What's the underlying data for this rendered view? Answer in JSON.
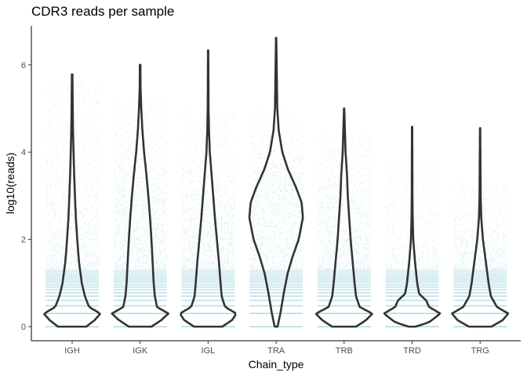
{
  "chart_data": {
    "type": "violin",
    "title": "CDR3 reads per sample",
    "xlabel": "Chain_type",
    "ylabel": "log10(reads)",
    "ylim": [
      -0.3,
      6.95
    ],
    "yticks": [
      "0",
      "2",
      "4",
      "6"
    ],
    "categories": [
      "IGH",
      "IGK",
      "IGL",
      "TRA",
      "TRB",
      "TRD",
      "TRG"
    ],
    "grid": false,
    "legend": "none",
    "colors": {
      "points": "#a6d8e0",
      "violin": "#333333",
      "axis": "#000000"
    },
    "violins": [
      {
        "name": "IGH",
        "max": 5.78,
        "point_max": 5.6,
        "profile": [
          [
            0,
            0.5
          ],
          [
            0.15,
            0.8
          ],
          [
            0.3,
            1.0
          ],
          [
            0.45,
            0.6
          ],
          [
            0.7,
            0.45
          ],
          [
            1.0,
            0.34
          ],
          [
            1.5,
            0.24
          ],
          [
            2.0,
            0.18
          ],
          [
            2.5,
            0.13
          ],
          [
            3.0,
            0.1
          ],
          [
            3.5,
            0.07
          ],
          [
            4.0,
            0.05
          ],
          [
            4.5,
            0.03
          ],
          [
            5.0,
            0.02
          ],
          [
            5.78,
            0.01
          ]
        ]
      },
      {
        "name": "IGK",
        "max": 6.0,
        "point_max": 5.3,
        "profile": [
          [
            0,
            0.4
          ],
          [
            0.15,
            0.75
          ],
          [
            0.3,
            1.0
          ],
          [
            0.45,
            0.6
          ],
          [
            0.7,
            0.52
          ],
          [
            1.0,
            0.48
          ],
          [
            1.5,
            0.44
          ],
          [
            2.0,
            0.4
          ],
          [
            2.5,
            0.35
          ],
          [
            3.0,
            0.29
          ],
          [
            3.5,
            0.22
          ],
          [
            4.0,
            0.14
          ],
          [
            4.5,
            0.08
          ],
          [
            5.0,
            0.04
          ],
          [
            5.5,
            0.015
          ],
          [
            6.0,
            0.01
          ]
        ]
      },
      {
        "name": "IGL",
        "max": 6.33,
        "point_max": 5.0,
        "profile": [
          [
            0,
            0.5
          ],
          [
            0.15,
            0.85
          ],
          [
            0.3,
            1.0
          ],
          [
            0.45,
            0.6
          ],
          [
            0.7,
            0.48
          ],
          [
            1.0,
            0.44
          ],
          [
            1.5,
            0.38
          ],
          [
            2.0,
            0.31
          ],
          [
            2.5,
            0.24
          ],
          [
            3.0,
            0.18
          ],
          [
            3.5,
            0.12
          ],
          [
            4.0,
            0.06
          ],
          [
            4.5,
            0.03
          ],
          [
            5.0,
            0.015
          ],
          [
            6.33,
            0.005
          ]
        ]
      },
      {
        "name": "TRA",
        "max": 6.62,
        "point_max": 5.0,
        "profile": [
          [
            0,
            0.05
          ],
          [
            0.3,
            0.15
          ],
          [
            0.8,
            0.28
          ],
          [
            1.2,
            0.4
          ],
          [
            1.6,
            0.58
          ],
          [
            2.0,
            0.8
          ],
          [
            2.5,
            0.95
          ],
          [
            2.85,
            0.9
          ],
          [
            3.2,
            0.7
          ],
          [
            3.6,
            0.42
          ],
          [
            4.0,
            0.22
          ],
          [
            4.5,
            0.09
          ],
          [
            5.0,
            0.04
          ],
          [
            6.62,
            0.005
          ]
        ]
      },
      {
        "name": "TRB",
        "max": 5.0,
        "point_max": 4.4,
        "profile": [
          [
            0,
            0.42
          ],
          [
            0.15,
            0.78
          ],
          [
            0.3,
            1.0
          ],
          [
            0.45,
            0.55
          ],
          [
            0.7,
            0.42
          ],
          [
            1.0,
            0.37
          ],
          [
            1.5,
            0.3
          ],
          [
            2.0,
            0.23
          ],
          [
            2.5,
            0.18
          ],
          [
            3.0,
            0.13
          ],
          [
            3.5,
            0.1
          ],
          [
            4.0,
            0.05
          ],
          [
            5.0,
            0.005
          ]
        ]
      },
      {
        "name": "TRD",
        "max": 4.58,
        "point_max": 3.8,
        "profile": [
          [
            0,
            0.12
          ],
          [
            0.1,
            0.6
          ],
          [
            0.3,
            1.0
          ],
          [
            0.45,
            0.6
          ],
          [
            0.6,
            0.5
          ],
          [
            0.75,
            0.25
          ],
          [
            1.0,
            0.18
          ],
          [
            1.5,
            0.1
          ],
          [
            2.0,
            0.04
          ],
          [
            2.5,
            0.02
          ],
          [
            3.0,
            0.012
          ],
          [
            4.58,
            0.005
          ]
        ]
      },
      {
        "name": "TRG",
        "max": 4.55,
        "point_max": 3.3,
        "profile": [
          [
            0,
            0.4
          ],
          [
            0.15,
            0.8
          ],
          [
            0.3,
            1.0
          ],
          [
            0.45,
            0.6
          ],
          [
            0.7,
            0.38
          ],
          [
            1.0,
            0.3
          ],
          [
            1.5,
            0.2
          ],
          [
            2.0,
            0.1
          ],
          [
            2.5,
            0.04
          ],
          [
            3.0,
            0.02
          ],
          [
            4.55,
            0.005
          ]
        ]
      }
    ]
  }
}
